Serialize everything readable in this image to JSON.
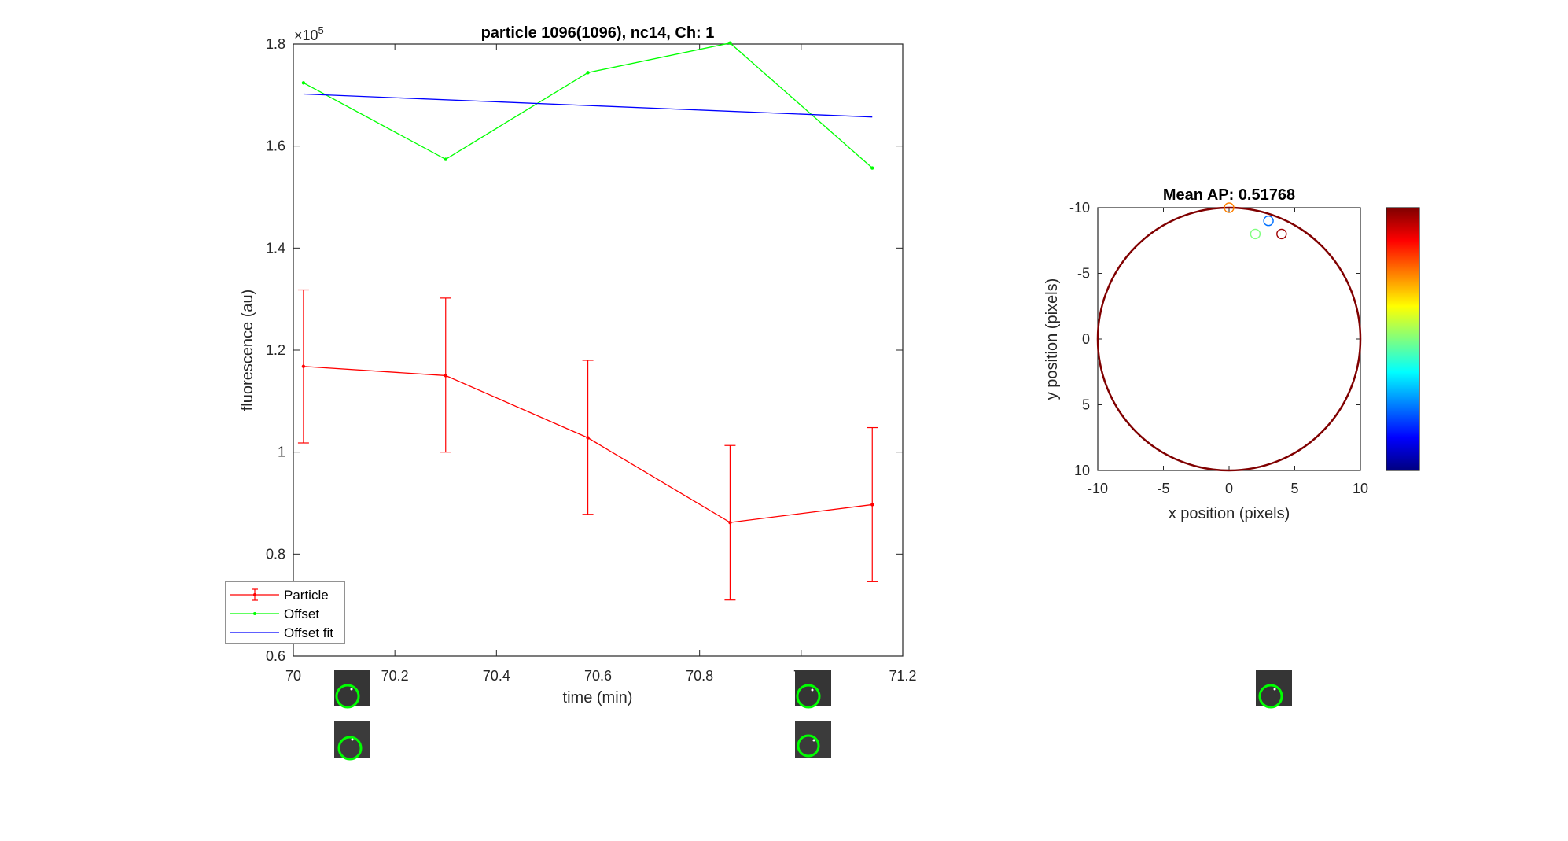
{
  "chart_data": [
    {
      "type": "line",
      "title": "particle 1096(1096), nc14, Ch: 1",
      "xlabel": "time (min)",
      "ylabel": "fluorescence (au)",
      "y_exponent_label": "×10",
      "y_exponent_power": "5",
      "xlim": [
        70,
        71.2
      ],
      "ylim": [
        0.6,
        1.8
      ],
      "xticks": [
        70,
        70.2,
        70.4,
        70.6,
        70.8,
        71,
        71.2
      ],
      "xtick_labels": [
        "70",
        "70.2",
        "70.4",
        "70.6",
        "70.8",
        "71",
        "71.2"
      ],
      "yticks": [
        0.6,
        0.8,
        1,
        1.2,
        1.4,
        1.6,
        1.8
      ],
      "ytick_labels": [
        "0.6",
        "0.8",
        "1",
        "1.2",
        "1.4",
        "1.6",
        "1.8"
      ],
      "grid": false,
      "legend_position": "bottom-left",
      "series": [
        {
          "name": "Particle",
          "color": "#ff0000",
          "x": [
            70.02,
            70.3,
            70.58,
            70.86,
            71.14
          ],
          "y": [
            1.168,
            1.15,
            1.028,
            0.862,
            0.897
          ],
          "err_low": [
            1.018,
            1.0,
            0.878,
            0.71,
            0.746
          ],
          "err_high": [
            1.318,
            1.302,
            1.18,
            1.013,
            1.048
          ]
        },
        {
          "name": "Offset",
          "color": "#00ff00",
          "x": [
            70.02,
            70.3,
            70.58,
            70.86,
            71.14
          ],
          "y": [
            1.724,
            1.574,
            1.744,
            1.802,
            1.557
          ]
        },
        {
          "name": "Offset fit",
          "color": "#0000ff",
          "x": [
            70.02,
            71.14
          ],
          "y": [
            1.702,
            1.657
          ]
        }
      ]
    },
    {
      "type": "scatter",
      "title": "Mean AP: 0.51768",
      "xlabel": "x position (pixels)",
      "ylabel": "y position (pixels)",
      "xlim": [
        -10,
        10
      ],
      "ylim": [
        -10,
        10
      ],
      "y_reversed": true,
      "xticks": [
        -10,
        -5,
        0,
        5,
        10
      ],
      "xtick_labels": [
        "-10",
        "-5",
        "0",
        "5",
        "10"
      ],
      "yticks": [
        -10,
        -5,
        0,
        5,
        10
      ],
      "ytick_labels": [
        "-10",
        "-5",
        "0",
        "5",
        "10"
      ],
      "grid": false,
      "circle": {
        "cx": 0,
        "cy": 0,
        "r": 10,
        "color": "#800000"
      },
      "points": [
        {
          "x": 0,
          "y": -10,
          "color": "#ff8000"
        },
        {
          "x": 3,
          "y": -9,
          "color": "#0070ff"
        },
        {
          "x": 2,
          "y": -8,
          "color": "#80ff80"
        },
        {
          "x": 4,
          "y": -8,
          "color": "#a00000"
        }
      ],
      "colorbar": {
        "colormap": "jet",
        "colors": [
          "#00007f",
          "#0000ff",
          "#007fff",
          "#00ffff",
          "#7fff7f",
          "#ffff00",
          "#ff7f00",
          "#ff0000",
          "#7f0000"
        ]
      }
    }
  ],
  "thumbnails": [
    {
      "name": "snapshot-1",
      "circle_color": "#00ff00"
    },
    {
      "name": "snapshot-2",
      "circle_color": "#00ff00"
    },
    {
      "name": "snapshot-3",
      "circle_color": "#00ff00"
    },
    {
      "name": "snapshot-4",
      "circle_color": "#00ff00"
    },
    {
      "name": "snapshot-5",
      "circle_color": "#00ff00"
    }
  ]
}
